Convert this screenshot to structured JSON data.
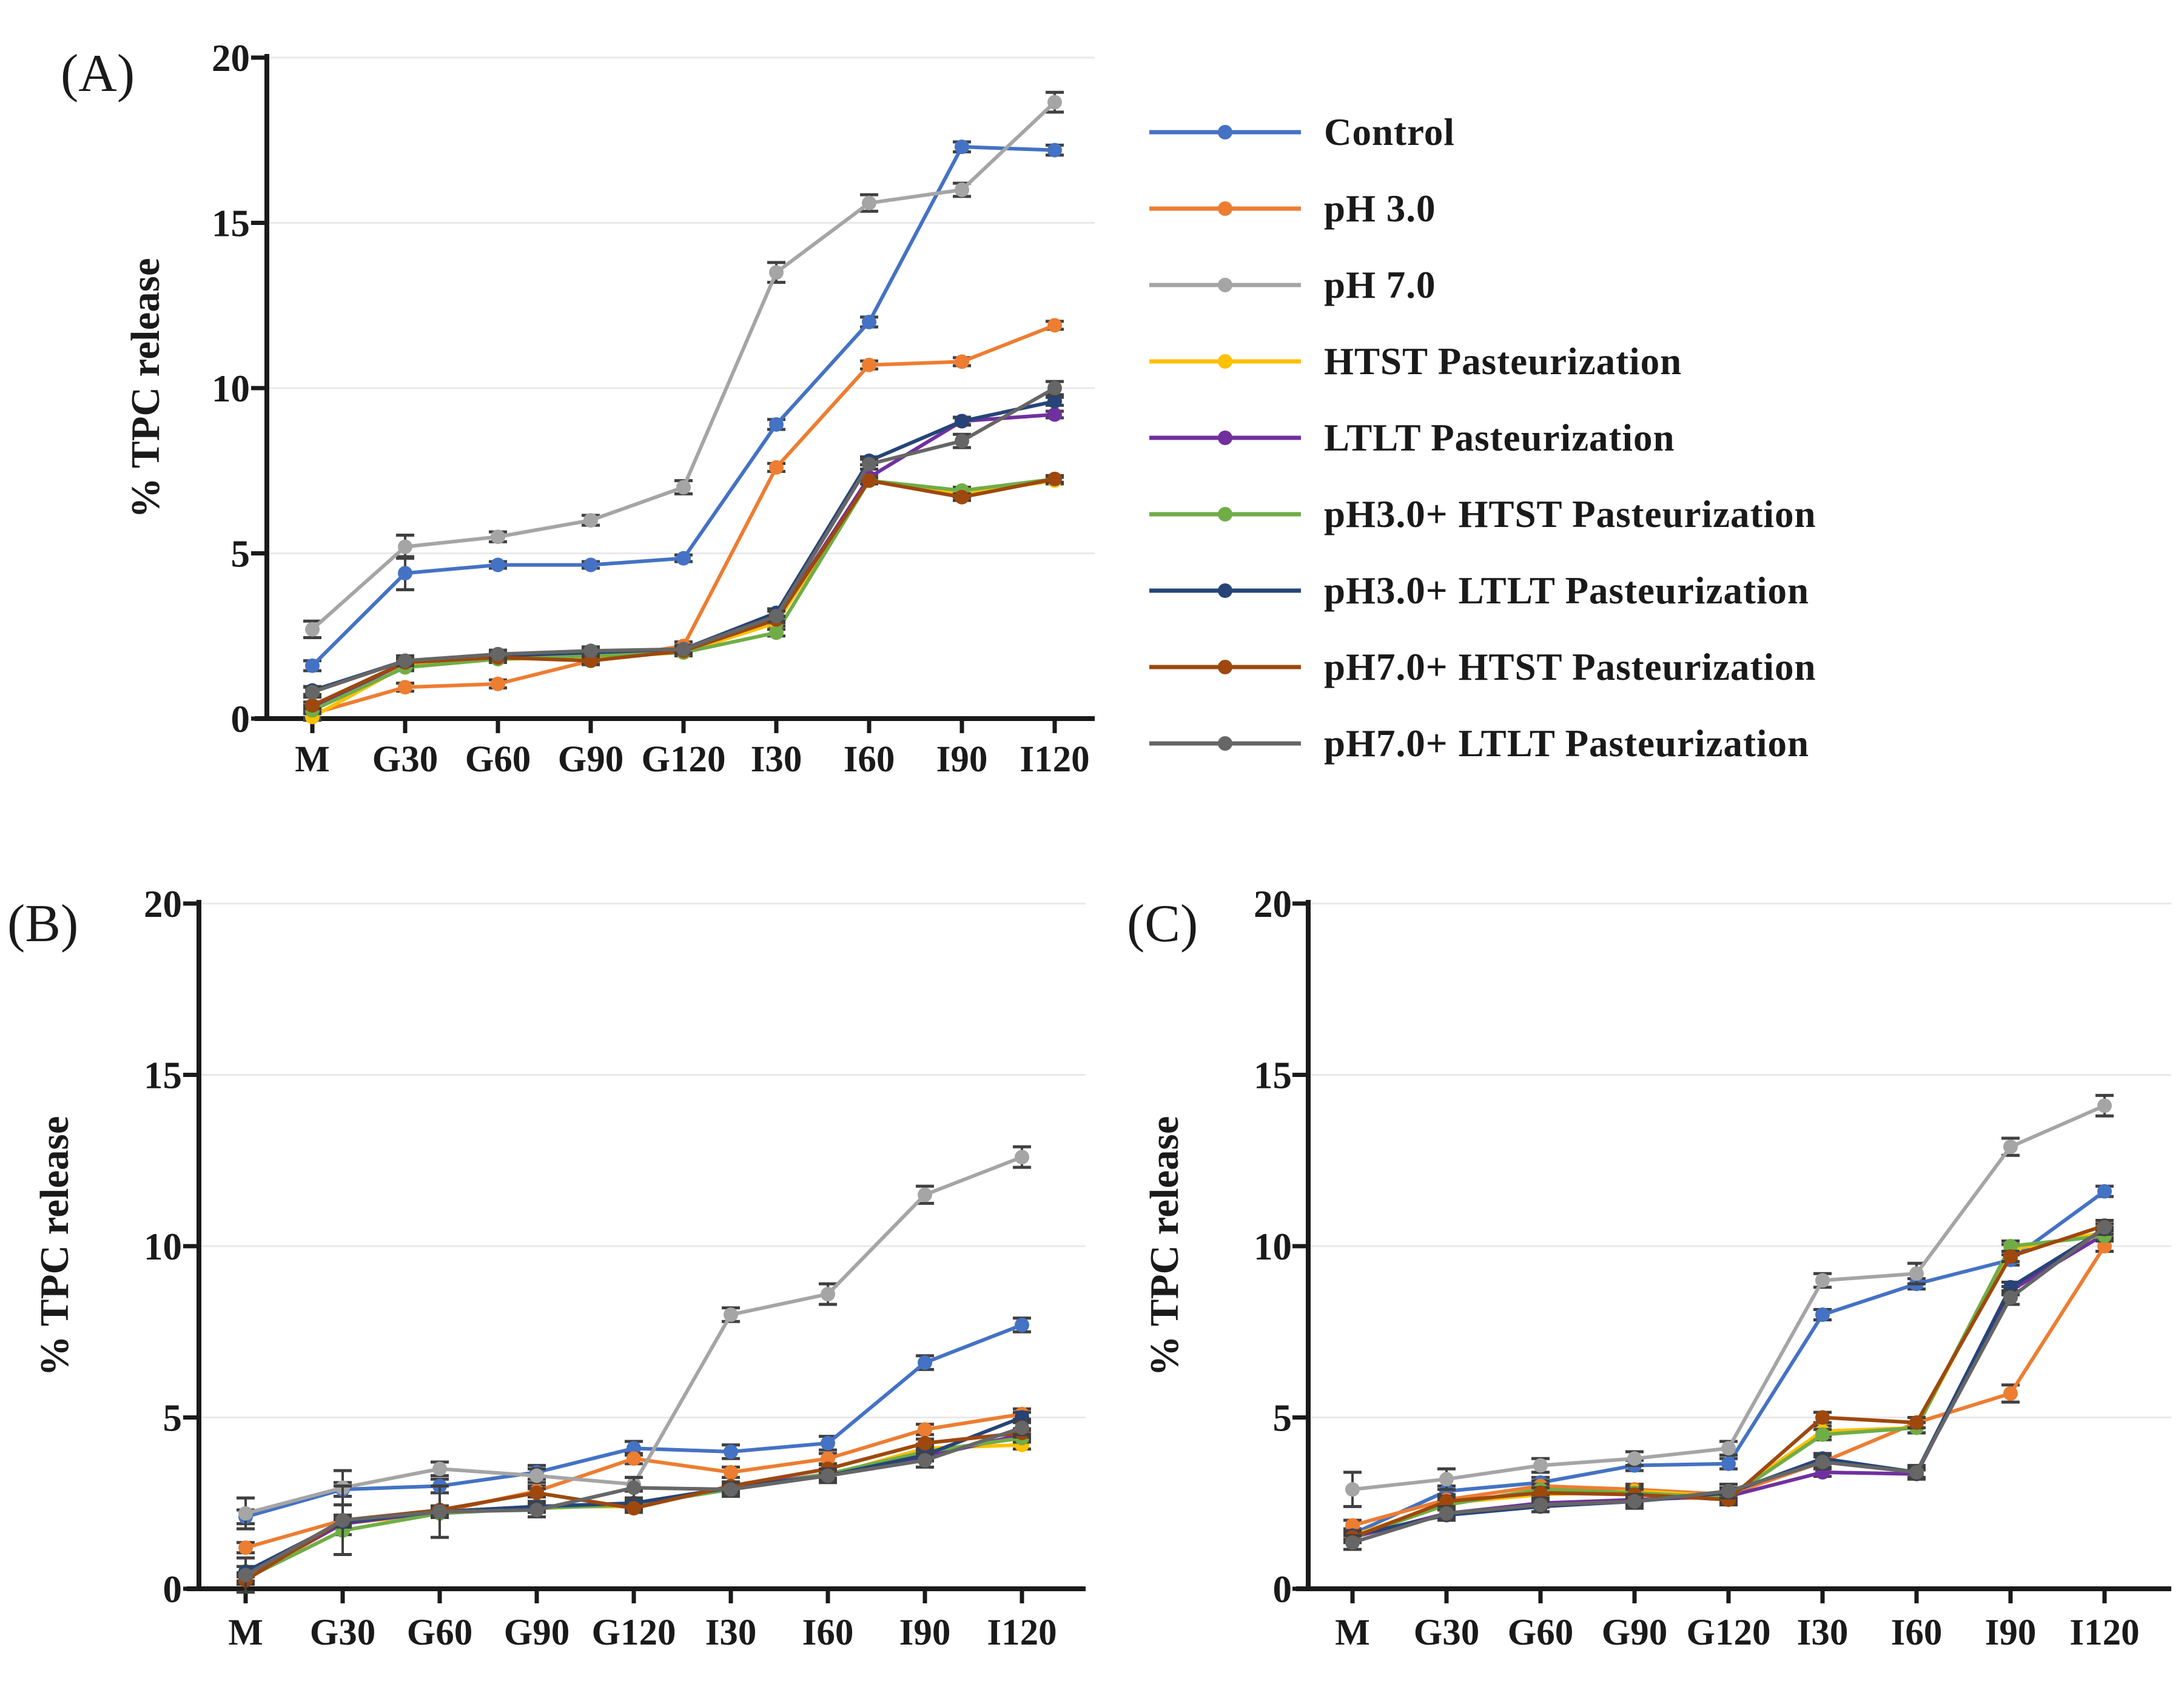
{
  "figure": {
    "background": "#ffffff",
    "error_bar_color": "#404040",
    "gridline_color": "#e9e9e9",
    "axis_color": "#1a1a1a"
  },
  "chart_data": [
    {
      "type": "line",
      "panel_label": "(A)",
      "ylabel": "% TPC release",
      "ylim": [
        0,
        20
      ],
      "yticks": [
        0,
        5,
        10,
        15,
        20
      ],
      "grid": true,
      "legend_position": "right",
      "categories": [
        "M",
        "G30",
        "G60",
        "G90",
        "G120",
        "I30",
        "I60",
        "I90",
        "I120"
      ],
      "series": [
        {
          "name": "Control",
          "color": "#4472C4",
          "values": [
            1.6,
            4.4,
            4.65,
            4.65,
            4.85,
            8.9,
            12.0,
            17.3,
            17.2
          ],
          "err": [
            0.15,
            0.5,
            0.1,
            0.1,
            0.1,
            0.15,
            0.15,
            0.15,
            0.15
          ]
        },
        {
          "name": "pH 3.0",
          "color": "#ED7D31",
          "values": [
            0.15,
            0.95,
            1.05,
            1.75,
            2.2,
            7.6,
            10.7,
            10.8,
            11.9
          ],
          "err": 0.12
        },
        {
          "name": "pH 7.0",
          "color": "#A5A5A5",
          "values": [
            2.7,
            5.2,
            5.5,
            6.0,
            7.0,
            13.5,
            15.6,
            16.0,
            18.65
          ],
          "err": [
            0.25,
            0.35,
            0.15,
            0.15,
            0.2,
            0.3,
            0.25,
            0.2,
            0.3
          ]
        },
        {
          "name": "HTST Pasteurization",
          "color": "#FFC000",
          "values": [
            0.05,
            1.6,
            1.8,
            1.85,
            2.0,
            2.9,
            7.2,
            6.8,
            7.2
          ],
          "err": 0.1
        },
        {
          "name": "LTLT Pasteurization",
          "color": "#7030A0",
          "values": [
            0.3,
            1.7,
            1.85,
            1.95,
            2.05,
            3.0,
            7.3,
            9.0,
            9.2
          ],
          "err": 0.1
        },
        {
          "name": "pH3.0+ HTST Pasteurization",
          "color": "#70AD47",
          "values": [
            0.25,
            1.55,
            1.8,
            1.9,
            2.0,
            2.6,
            7.2,
            6.9,
            7.25
          ],
          "err": 0.1
        },
        {
          "name": "pH3.0+ LTLT Pasteurization",
          "color": "#264478",
          "values": [
            0.85,
            1.75,
            1.9,
            2.0,
            2.1,
            3.2,
            7.8,
            9.0,
            9.6
          ],
          "err": 0.12
        },
        {
          "name": "pH7.0+ HTST Pasteurization",
          "color": "#9E480E",
          "values": [
            0.4,
            1.7,
            1.85,
            1.75,
            2.05,
            3.0,
            7.2,
            6.7,
            7.25
          ],
          "err": 0.1
        },
        {
          "name": "pH7.0+ LTLT Pasteurization",
          "color": "#666666",
          "values": [
            0.8,
            1.75,
            1.95,
            2.05,
            2.1,
            3.1,
            7.7,
            8.4,
            10.0
          ],
          "err": [
            0.15,
            0.15,
            0.12,
            0.12,
            0.12,
            0.15,
            0.15,
            0.2,
            0.2
          ]
        }
      ]
    },
    {
      "type": "line",
      "panel_label": "(B)",
      "ylabel": "% TPC release",
      "ylim": [
        0,
        20
      ],
      "yticks": [
        0,
        5,
        10,
        15,
        20
      ],
      "grid": true,
      "legend_position": "none",
      "categories": [
        "M",
        "G30",
        "G60",
        "G90",
        "G120",
        "I30",
        "I60",
        "I90",
        "I120"
      ],
      "series": [
        {
          "name": "Control",
          "color": "#4472C4",
          "values": [
            2.1,
            2.9,
            3.0,
            3.4,
            4.1,
            4.0,
            4.25,
            6.6,
            7.7
          ],
          "err": 0.2
        },
        {
          "name": "pH 3.0",
          "color": "#ED7D31",
          "values": [
            1.2,
            2.0,
            2.25,
            2.85,
            3.8,
            3.4,
            3.8,
            4.65,
            5.1
          ],
          "err": 0.15
        },
        {
          "name": "pH 7.0",
          "color": "#A5A5A5",
          "values": [
            2.2,
            2.95,
            3.5,
            3.3,
            3.05,
            8.0,
            8.6,
            11.5,
            12.6
          ],
          "err": [
            0.45,
            0.5,
            0.2,
            0.2,
            0.2,
            0.2,
            0.3,
            0.25,
            0.3
          ]
        },
        {
          "name": "HTST Pasteurization",
          "color": "#FFC000",
          "values": [
            0.3,
            1.9,
            2.2,
            2.4,
            2.4,
            2.95,
            3.3,
            4.1,
            4.2
          ],
          "err": 0.12
        },
        {
          "name": "LTLT Pasteurization",
          "color": "#7030A0",
          "values": [
            0.35,
            1.9,
            2.25,
            2.4,
            2.45,
            2.95,
            3.35,
            3.85,
            4.5
          ],
          "err": 0.12
        },
        {
          "name": "pH3.0+ HTST Pasteurization",
          "color": "#70AD47",
          "values": [
            0.3,
            1.7,
            2.2,
            2.35,
            2.45,
            2.9,
            3.35,
            4.0,
            4.4
          ],
          "err": 0.12
        },
        {
          "name": "pH3.0+ LTLT Pasteurization",
          "color": "#264478",
          "values": [
            0.5,
            1.95,
            2.25,
            2.4,
            2.5,
            2.95,
            3.3,
            3.9,
            5.0
          ],
          "err": 0.15
        },
        {
          "name": "pH7.0+ HTST Pasteurization",
          "color": "#9E480E",
          "values": [
            0.25,
            2.0,
            2.3,
            2.8,
            2.35,
            3.0,
            3.5,
            4.25,
            4.55
          ],
          "err": 0.12
        },
        {
          "name": "pH7.0+ LTLT Pasteurization",
          "color": "#666666",
          "values": [
            0.4,
            2.0,
            2.25,
            2.3,
            2.95,
            2.9,
            3.3,
            3.75,
            4.7
          ],
          "err": [
            0.5,
            1.0,
            0.75,
            0.2,
            0.3,
            0.2,
            0.2,
            0.2,
            0.2
          ]
        }
      ]
    },
    {
      "type": "line",
      "panel_label": "(C)",
      "ylabel": "% TPC release",
      "ylim": [
        0,
        20
      ],
      "yticks": [
        0,
        5,
        10,
        15,
        20
      ],
      "grid": true,
      "legend_position": "none",
      "categories": [
        "M",
        "G30",
        "G60",
        "G90",
        "G120",
        "I30",
        "I60",
        "I90",
        "I120"
      ],
      "series": [
        {
          "name": "Control",
          "color": "#4472C4",
          "values": [
            1.6,
            2.85,
            3.1,
            3.6,
            3.65,
            8.0,
            8.9,
            9.6,
            11.6
          ],
          "err": 0.15
        },
        {
          "name": "pH 3.0",
          "color": "#ED7D31",
          "values": [
            1.85,
            2.6,
            3.0,
            2.9,
            2.75,
            3.7,
            4.85,
            5.7,
            10.0
          ],
          "err": [
            0.15,
            0.15,
            0.15,
            0.15,
            0.15,
            0.15,
            0.15,
            0.25,
            0.15
          ]
        },
        {
          "name": "pH 7.0",
          "color": "#A5A5A5",
          "values": [
            2.9,
            3.2,
            3.6,
            3.8,
            4.1,
            9.0,
            9.2,
            12.9,
            14.1
          ],
          "err": [
            0.5,
            0.3,
            0.2,
            0.2,
            0.2,
            0.2,
            0.3,
            0.25,
            0.3
          ]
        },
        {
          "name": "HTST Pasteurization",
          "color": "#FFC000",
          "values": [
            1.55,
            2.5,
            2.75,
            2.85,
            2.7,
            4.6,
            4.7,
            9.9,
            10.4
          ],
          "err": 0.15
        },
        {
          "name": "LTLT Pasteurization",
          "color": "#7030A0",
          "values": [
            1.5,
            2.2,
            2.5,
            2.6,
            2.7,
            3.4,
            3.35,
            8.7,
            10.35
          ],
          "err": 0.12
        },
        {
          "name": "pH3.0+ HTST Pasteurization",
          "color": "#70AD47",
          "values": [
            1.5,
            2.45,
            2.9,
            2.8,
            2.65,
            4.5,
            4.7,
            10.0,
            10.3
          ],
          "err": 0.15
        },
        {
          "name": "pH3.0+ LTLT Pasteurization",
          "color": "#264478",
          "values": [
            1.55,
            2.15,
            2.4,
            2.55,
            2.8,
            3.8,
            3.4,
            8.8,
            10.5
          ],
          "err": 0.15
        },
        {
          "name": "pH7.0+ HTST Pasteurization",
          "color": "#9E480E",
          "values": [
            1.5,
            2.55,
            2.8,
            2.75,
            2.6,
            5.0,
            4.85,
            9.7,
            10.6
          ],
          "err": 0.15
        },
        {
          "name": "pH7.0+ LTLT Pasteurization",
          "color": "#666666",
          "values": [
            1.35,
            2.2,
            2.45,
            2.55,
            2.85,
            3.7,
            3.4,
            8.5,
            10.55
          ],
          "err": 0.2
        }
      ]
    }
  ]
}
